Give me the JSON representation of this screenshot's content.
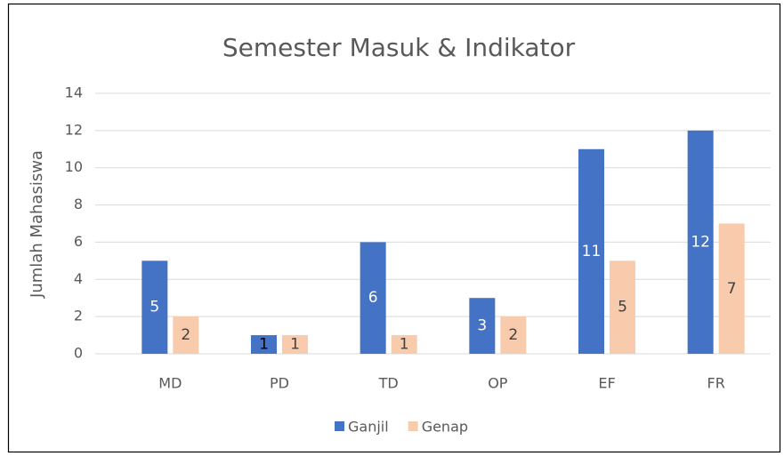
{
  "chart_data": {
    "type": "bar",
    "title": "Semester Masuk & Indikator",
    "y_label": "Jumlah Mahasiswa",
    "categories": [
      "MD",
      "PD",
      "TD",
      "OP",
      "EF",
      "FR"
    ],
    "series": [
      {
        "name": "Ganjil",
        "color": "#4472c4",
        "values": [
          5,
          1,
          6,
          3,
          11,
          12
        ]
      },
      {
        "name": "Genap",
        "color": "#f8cbad",
        "values": [
          2,
          1,
          1,
          2,
          5,
          7
        ]
      }
    ],
    "ylim": [
      0,
      14
    ],
    "yticks": [
      0,
      2,
      4,
      6,
      8,
      10,
      12,
      14
    ],
    "grid": true,
    "legend": "bottom",
    "data_labels": true
  }
}
